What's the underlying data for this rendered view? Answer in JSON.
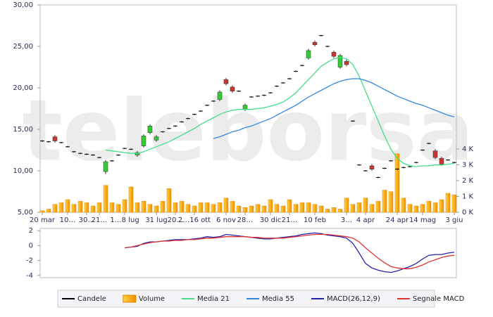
{
  "chart_data": [
    {
      "type": "candlestick",
      "watermark": "teleborsa",
      "categories": [
        "20 mar",
        null,
        null,
        null,
        "10…",
        null,
        null,
        "30…",
        null,
        "21…",
        null,
        null,
        null,
        "1…8 lug",
        null,
        null,
        null,
        null,
        "31 lug",
        null,
        null,
        "20…",
        null,
        null,
        "2…16 ott",
        null,
        null,
        null,
        null,
        "6 nov",
        null,
        null,
        "28…",
        null,
        null,
        null,
        "30 dic",
        null,
        null,
        "21…",
        null,
        null,
        null,
        "10 feb",
        null,
        null,
        null,
        null,
        "3…",
        null,
        null,
        "4 apr",
        null,
        null,
        null,
        null,
        "24 apr",
        null,
        null,
        null,
        "14 mag",
        null,
        null,
        null,
        null,
        "3 giu"
      ],
      "ylim": [
        5,
        30
      ],
      "yticks": [
        {
          "value": 30,
          "label": "30,00"
        },
        {
          "value": 25,
          "label": "25,00"
        },
        {
          "value": 20,
          "label": "20,00"
        },
        {
          "value": 15,
          "label": "15,00"
        },
        {
          "value": 10,
          "label": "10,00"
        },
        {
          "value": 5,
          "label": "5,00"
        }
      ],
      "y2lim": [
        0,
        13.1
      ],
      "y2ticks": [
        {
          "value": 4,
          "label": "4 K"
        },
        {
          "value": 3,
          "label": "3 K"
        },
        {
          "value": 2,
          "label": "2 K"
        },
        {
          "value": 1,
          "label": "1 K"
        },
        {
          "value": 0,
          "label": "0 K"
        }
      ],
      "up_color": "#33cc33",
      "down_color": "#cc3333",
      "series": [
        {
          "name": "Candele",
          "type": "candlestick",
          "color": "#000000",
          "open": [
            13.6,
            13.5,
            14.1,
            13.4,
            12.9,
            12.3,
            12.1,
            12.0,
            11.9,
            11.6,
            9.9,
            11.2,
            11.9,
            12.7,
            12.6,
            11.9,
            13.0,
            14.6,
            13.7,
            14.7,
            15.1,
            15.4,
            15.9,
            16.3,
            16.8,
            17.2,
            17.9,
            18.4,
            18.6,
            21.0,
            20.1,
            19.6,
            17.4,
            18.9,
            19.0,
            19.1,
            19.4,
            20.2,
            20.6,
            21.1,
            22.0,
            22.7,
            23.6,
            25.5,
            26.3,
            25.0,
            24.3,
            22.5,
            23.2,
            16.0,
            10.7,
            10.0,
            10.6,
            9.2,
            10.3,
            11.2,
            10.2,
            10.4,
            10.5,
            11.0,
            12.5,
            13.3,
            12.4,
            11.5,
            11.3,
            11.0
          ],
          "high": [
            13.7,
            13.6,
            14.3,
            13.5,
            13.0,
            12.4,
            12.2,
            12.1,
            12.0,
            11.7,
            11.3,
            11.3,
            12.0,
            12.8,
            12.7,
            12.4,
            14.4,
            15.6,
            14.3,
            14.8,
            15.2,
            15.5,
            16.0,
            16.4,
            16.9,
            17.3,
            18.0,
            18.5,
            19.7,
            21.2,
            20.3,
            19.7,
            18.1,
            19.0,
            19.1,
            19.2,
            19.5,
            20.3,
            20.7,
            21.2,
            22.1,
            22.8,
            24.7,
            25.7,
            26.4,
            25.1,
            24.5,
            24.1,
            23.4,
            16.1,
            10.8,
            10.1,
            10.8,
            9.3,
            10.4,
            11.3,
            10.3,
            10.5,
            10.6,
            11.1,
            12.6,
            13.4,
            12.6,
            11.7,
            11.4,
            11.1
          ],
          "low": [
            13.5,
            13.4,
            13.4,
            13.3,
            12.8,
            12.2,
            12.0,
            11.9,
            11.8,
            11.5,
            9.6,
            11.1,
            11.8,
            12.6,
            12.5,
            11.7,
            12.8,
            14.4,
            13.5,
            14.6,
            15.0,
            15.3,
            15.8,
            16.2,
            16.7,
            17.1,
            17.8,
            18.3,
            18.4,
            20.3,
            19.4,
            19.5,
            17.2,
            18.8,
            18.9,
            19.0,
            19.3,
            20.1,
            20.5,
            21.0,
            21.9,
            22.6,
            23.4,
            25.0,
            26.2,
            24.9,
            23.6,
            22.3,
            22.6,
            15.9,
            10.6,
            9.9,
            10.0,
            9.1,
            10.2,
            11.1,
            10.1,
            10.3,
            10.4,
            10.9,
            12.4,
            13.2,
            11.4,
            10.6,
            11.2,
            10.9
          ],
          "close": [
            13.6,
            13.5,
            13.6,
            13.4,
            12.9,
            12.3,
            12.1,
            12.0,
            11.9,
            11.6,
            11.1,
            11.2,
            11.9,
            12.7,
            12.6,
            12.2,
            14.2,
            15.4,
            14.1,
            14.7,
            15.1,
            15.4,
            15.9,
            16.3,
            16.8,
            17.2,
            17.9,
            18.4,
            19.5,
            20.5,
            19.6,
            19.6,
            17.9,
            18.9,
            19.0,
            19.1,
            19.4,
            20.2,
            20.6,
            21.1,
            22.0,
            22.7,
            24.5,
            25.2,
            26.3,
            25.0,
            23.8,
            23.9,
            22.8,
            16.0,
            10.7,
            10.0,
            10.2,
            9.2,
            10.3,
            11.2,
            10.2,
            10.4,
            10.5,
            11.0,
            12.5,
            13.3,
            11.6,
            10.8,
            11.3,
            11.0
          ]
        },
        {
          "name": "Volume",
          "type": "bar",
          "axis": "y2",
          "color": "#f5a800",
          "values": [
            0.1,
            0.2,
            0.5,
            0.6,
            0.8,
            0.5,
            0.7,
            0.6,
            0.4,
            0.6,
            1.7,
            0.6,
            0.5,
            0.8,
            1.6,
            0.6,
            0.7,
            0.5,
            0.4,
            0.7,
            1.5,
            0.6,
            0.7,
            0.5,
            0.4,
            0.6,
            0.6,
            0.5,
            0.6,
            0.9,
            0.7,
            0.4,
            0.3,
            0.4,
            0.5,
            0.4,
            0.8,
            0.5,
            0.4,
            0.8,
            0.5,
            0.6,
            0.6,
            0.5,
            0.4,
            0.2,
            0.3,
            0.2,
            0.9,
            0.5,
            0.6,
            0.9,
            0.5,
            0.7,
            1.4,
            1.3,
            3.7,
            0.9,
            0.5,
            0.4,
            0.5,
            0.7,
            0.6,
            0.8,
            1.2,
            1.1
          ]
        },
        {
          "name": "Media 21",
          "type": "line",
          "color": "#44dd88",
          "values": [
            null,
            null,
            null,
            null,
            null,
            null,
            null,
            null,
            null,
            null,
            12.5,
            12.4,
            12.3,
            12.2,
            12.1,
            12.1,
            12.3,
            12.6,
            12.9,
            13.2,
            13.5,
            13.9,
            14.3,
            14.7,
            15.1,
            15.6,
            16.0,
            16.4,
            16.8,
            17.1,
            17.3,
            17.4,
            17.4,
            17.4,
            17.5,
            17.6,
            17.8,
            18.0,
            18.3,
            18.8,
            19.4,
            20.2,
            21.0,
            21.8,
            22.6,
            23.1,
            23.5,
            23.7,
            23.5,
            22.8,
            21.4,
            19.6,
            17.8,
            16.0,
            14.2,
            12.6,
            11.5,
            10.9,
            10.6,
            10.5,
            10.6,
            10.6,
            10.7,
            10.7,
            10.8,
            10.9
          ]
        },
        {
          "name": "Media 55",
          "type": "line",
          "color": "#3388dd",
          "values": [
            null,
            null,
            null,
            null,
            null,
            null,
            null,
            null,
            null,
            null,
            null,
            null,
            null,
            null,
            null,
            null,
            null,
            null,
            null,
            null,
            null,
            null,
            null,
            null,
            null,
            null,
            null,
            13.9,
            14.1,
            14.4,
            14.7,
            14.9,
            15.2,
            15.4,
            15.7,
            16.0,
            16.3,
            16.7,
            17.1,
            17.5,
            17.9,
            18.4,
            18.9,
            19.3,
            19.7,
            20.1,
            20.5,
            20.8,
            21.0,
            21.1,
            21.1,
            20.9,
            20.6,
            20.2,
            19.8,
            19.4,
            19.0,
            18.7,
            18.4,
            18.1,
            17.9,
            17.6,
            17.3,
            17.0,
            16.7,
            16.5
          ]
        }
      ]
    },
    {
      "type": "line",
      "ylim": [
        -4.3,
        2.3
      ],
      "yticks": [
        2,
        0,
        -2,
        -4
      ],
      "series": [
        {
          "name": "MACD(26,12,9)",
          "color": "#2222aa",
          "values": [
            null,
            null,
            null,
            null,
            null,
            null,
            null,
            null,
            null,
            null,
            null,
            null,
            null,
            -0.3,
            -0.2,
            -0.1,
            0.3,
            0.5,
            0.5,
            0.6,
            0.7,
            0.8,
            0.8,
            0.8,
            0.9,
            1.0,
            1.2,
            1.1,
            1.2,
            1.5,
            1.4,
            1.3,
            1.2,
            1.1,
            1.0,
            0.9,
            0.9,
            1.0,
            1.1,
            1.2,
            1.3,
            1.5,
            1.6,
            1.7,
            1.6,
            1.4,
            1.3,
            1.2,
            1.0,
            0.3,
            -1.0,
            -2.4,
            -3.0,
            -3.3,
            -3.5,
            -3.6,
            -3.4,
            -3.1,
            -2.8,
            -2.4,
            -1.8,
            -1.3,
            -1.2,
            -1.2,
            -1.0,
            -0.9
          ]
        },
        {
          "name": "Segnale MACD",
          "color": "#dd3333",
          "values": [
            null,
            null,
            null,
            null,
            null,
            null,
            null,
            null,
            null,
            null,
            null,
            null,
            null,
            -0.3,
            -0.2,
            0.0,
            0.2,
            0.4,
            0.5,
            0.6,
            0.6,
            0.7,
            0.7,
            0.8,
            0.8,
            0.9,
            1.0,
            1.0,
            1.1,
            1.2,
            1.2,
            1.2,
            1.2,
            1.1,
            1.1,
            1.0,
            1.0,
            1.0,
            1.0,
            1.1,
            1.2,
            1.3,
            1.4,
            1.5,
            1.5,
            1.5,
            1.4,
            1.3,
            1.2,
            1.0,
            0.5,
            -0.3,
            -1.0,
            -1.7,
            -2.3,
            -2.8,
            -3.0,
            -3.1,
            -3.1,
            -2.9,
            -2.6,
            -2.2,
            -1.9,
            -1.6,
            -1.4,
            -1.3
          ]
        }
      ]
    }
  ]
}
